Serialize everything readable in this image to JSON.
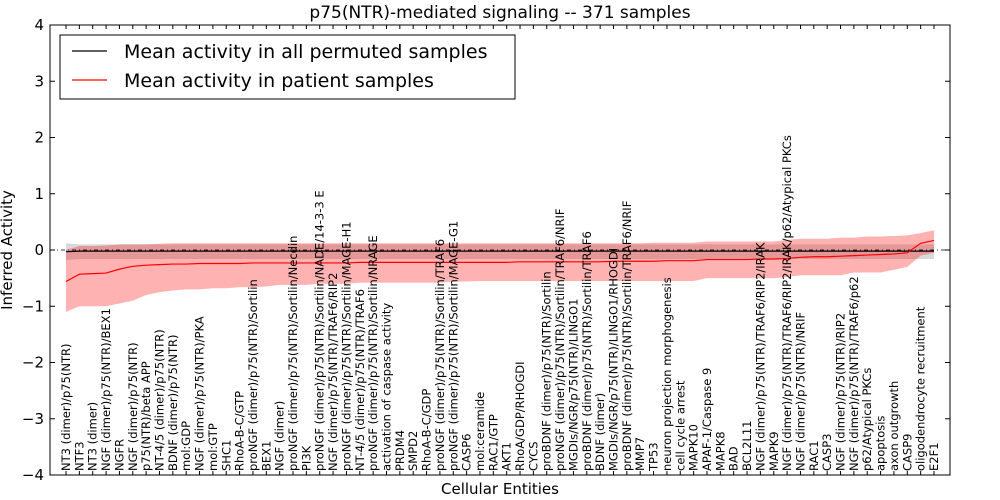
{
  "chart_data": {
    "type": "line",
    "title": "p75(NTR)-mediated signaling -- 371 samples",
    "xlabel": "Cellular Entities",
    "ylabel": "Inferred Activity",
    "ylim": [
      -4,
      4
    ],
    "yticks": [
      -4,
      -3,
      -2,
      -1,
      0,
      1,
      2,
      3,
      4
    ],
    "categories": [
      "NT3 (dimer)/p75(NTR)",
      "NTF3",
      "NT3 (dimer)",
      "NGF (dimer)/p75(NTR)/BEX1",
      "NGFR",
      "NGF (dimer)/p75(NTR)",
      "p75(NTR)/beta APP",
      "NT-4/5 (dimer)/p75(NTR)",
      "BDNF (dimer)/p75(NTR)",
      "mol:GDP",
      "NGF (dimer)/p75(NTR)/PKA",
      "mol:GTP",
      "SHC1",
      "RhoA-B-C/GTP",
      "proNGF (dimer)/p75(NTR)/Sortilin",
      "BEX1",
      "NGF (dimer)",
      "proNGF (dimer)/p75(NTR)/Sortilin/Necdin",
      "PI3K",
      "proNGF (dimer)/p75(NTR)/Sortilin/NADE/14-3-3 E",
      "NGF (dimer)/p75(NTR)/TRAF6/RIP2",
      "proNGF (dimer)/p75(NTR)/Sortilin/MAGE-H1",
      "NT-4/5 (dimer)/p75(NTR)/TRAF6",
      "proNGF (dimer)/p75(NTR)/Sortilin/NRAGE",
      "activation of caspase activity",
      "PRDM4",
      "SMPD2",
      "RhoA-B-C/GDP",
      "proNGF (dimer)/p75(NTR)/Sortilin/TRAF6",
      "proNGF (dimer)/p75(NTR)/Sortilin/MAGE-G1",
      "CASP6",
      "mol:ceramide",
      "RAC1/GTP",
      "AKT1",
      "RhoA/GDP/RHOGDI",
      "CYCS",
      "proBDNF (dimer)/p75(NTR)/Sortilin",
      "proNGF (dimer)/p75(NTR)/Sortilin/TRAF6/NRIF",
      "MGDIs/NGR/p75(NTR)/LINGO1",
      "proBDNF (dimer)/p75(NTR)/Sortilin/TRAF6",
      "BDNF (dimer)",
      "MGDIs/NGR/p75(NTR)/LINGO1/RHOGDI",
      "proBDNF (dimer)/p75(NTR)/Sortilin/TRAF6/NRIF",
      "MMP7",
      "TP53",
      "neuron projection morphogenesis",
      "cell cycle arrest",
      "MAPK10",
      "APAF-1/Caspase 9",
      "MAPK8",
      "BAD",
      "BCL2L11",
      "NGF (dimer)/p75(NTR)/TRAF6/RIP2/IRAK",
      "MAPK9",
      "NGF (dimer)/p75(NTR)/TRAF6/RIP2/IRAK/p62/Atypical PKCs",
      "NGF (dimer)/p75(NTR)/NRIF",
      "RAC1",
      "CASP3",
      "NGF (dimer)/p75(NTR)/RIP2",
      "NGF (dimer)/p75(NTR)/TRAF6/p62",
      "p62/Atypical PKCs",
      "apoptosis",
      "axon outgrowth",
      "CASP9",
      "oligodendrocyte recruitment",
      "E2F1"
    ],
    "series": [
      {
        "name": "Mean activity in all permuted samples",
        "color": "#000000",
        "values": [
          -0.03,
          -0.02,
          -0.02,
          -0.02,
          -0.02,
          -0.02,
          -0.02,
          -0.02,
          -0.02,
          -0.02,
          -0.02,
          -0.02,
          -0.02,
          -0.02,
          -0.02,
          -0.02,
          -0.02,
          -0.02,
          -0.02,
          -0.02,
          -0.02,
          -0.02,
          -0.02,
          -0.02,
          -0.02,
          -0.02,
          -0.02,
          -0.02,
          -0.02,
          -0.02,
          -0.02,
          -0.02,
          -0.02,
          -0.02,
          -0.02,
          -0.02,
          -0.02,
          -0.02,
          -0.02,
          -0.02,
          -0.02,
          -0.02,
          -0.02,
          -0.02,
          -0.02,
          -0.02,
          -0.02,
          -0.02,
          -0.02,
          -0.02,
          -0.02,
          -0.02,
          -0.02,
          -0.02,
          -0.02,
          -0.02,
          -0.02,
          -0.02,
          -0.02,
          -0.02,
          -0.02,
          -0.02,
          -0.02,
          -0.02,
          -0.02,
          -0.02
        ],
        "band_lower": [
          -0.18,
          -0.16,
          -0.16,
          -0.16,
          -0.16,
          -0.16,
          -0.16,
          -0.16,
          -0.16,
          -0.16,
          -0.16,
          -0.16,
          -0.16,
          -0.16,
          -0.16,
          -0.16,
          -0.16,
          -0.16,
          -0.16,
          -0.16,
          -0.16,
          -0.16,
          -0.16,
          -0.16,
          -0.16,
          -0.16,
          -0.16,
          -0.16,
          -0.16,
          -0.16,
          -0.16,
          -0.16,
          -0.16,
          -0.16,
          -0.16,
          -0.16,
          -0.16,
          -0.16,
          -0.16,
          -0.16,
          -0.16,
          -0.16,
          -0.16,
          -0.16,
          -0.16,
          -0.16,
          -0.16,
          -0.16,
          -0.16,
          -0.16,
          -0.16,
          -0.16,
          -0.16,
          -0.16,
          -0.16,
          -0.16,
          -0.16,
          -0.16,
          -0.16,
          -0.16,
          -0.16,
          -0.16,
          -0.16,
          -0.16,
          -0.16,
          -0.16
        ],
        "band_upper": [
          0.12,
          0.1,
          0.1,
          0.1,
          0.1,
          0.1,
          0.1,
          0.1,
          0.1,
          0.1,
          0.1,
          0.1,
          0.1,
          0.1,
          0.1,
          0.1,
          0.1,
          0.1,
          0.1,
          0.1,
          0.1,
          0.1,
          0.1,
          0.1,
          0.1,
          0.1,
          0.1,
          0.1,
          0.1,
          0.1,
          0.1,
          0.1,
          0.1,
          0.1,
          0.1,
          0.1,
          0.1,
          0.1,
          0.1,
          0.1,
          0.1,
          0.1,
          0.1,
          0.1,
          0.1,
          0.1,
          0.1,
          0.1,
          0.1,
          0.1,
          0.1,
          0.1,
          0.1,
          0.1,
          0.1,
          0.1,
          0.1,
          0.1,
          0.1,
          0.1,
          0.1,
          0.1,
          0.1,
          0.1,
          0.1,
          0.1
        ]
      },
      {
        "name": "Mean activity in patient samples",
        "color": "#ff0000",
        "values": [
          -0.56,
          -0.43,
          -0.42,
          -0.41,
          -0.34,
          -0.29,
          -0.27,
          -0.26,
          -0.25,
          -0.25,
          -0.24,
          -0.24,
          -0.24,
          -0.24,
          -0.23,
          -0.23,
          -0.23,
          -0.23,
          -0.23,
          -0.23,
          -0.23,
          -0.23,
          -0.22,
          -0.22,
          -0.22,
          -0.22,
          -0.22,
          -0.22,
          -0.22,
          -0.22,
          -0.22,
          -0.22,
          -0.22,
          -0.22,
          -0.21,
          -0.21,
          -0.21,
          -0.21,
          -0.21,
          -0.21,
          -0.21,
          -0.2,
          -0.2,
          -0.2,
          -0.2,
          -0.19,
          -0.19,
          -0.19,
          -0.17,
          -0.17,
          -0.17,
          -0.17,
          -0.16,
          -0.16,
          -0.15,
          -0.13,
          -0.12,
          -0.12,
          -0.11,
          -0.1,
          -0.09,
          -0.08,
          -0.07,
          -0.05,
          0.12,
          0.17
        ],
        "band_lower": [
          -1.1,
          -1.0,
          -1.0,
          -1.0,
          -0.95,
          -0.9,
          -0.8,
          -0.75,
          -0.72,
          -0.7,
          -0.7,
          -0.68,
          -0.68,
          -0.66,
          -0.66,
          -0.65,
          -0.62,
          -0.62,
          -0.62,
          -0.6,
          -0.6,
          -0.6,
          -0.58,
          -0.58,
          -0.58,
          -0.58,
          -0.58,
          -0.58,
          -0.58,
          -0.56,
          -0.56,
          -0.55,
          -0.55,
          -0.55,
          -0.55,
          -0.55,
          -0.55,
          -0.55,
          -0.55,
          -0.55,
          -0.55,
          -0.55,
          -0.55,
          -0.55,
          -0.55,
          -0.55,
          -0.55,
          -0.55,
          -0.5,
          -0.5,
          -0.5,
          -0.5,
          -0.5,
          -0.5,
          -0.48,
          -0.45,
          -0.45,
          -0.45,
          -0.45,
          -0.4,
          -0.4,
          -0.4,
          -0.35,
          -0.3,
          -0.1,
          -0.05
        ],
        "band_upper": [
          0.0,
          0.07,
          0.07,
          0.08,
          0.1,
          0.1,
          0.1,
          0.11,
          0.12,
          0.12,
          0.12,
          0.12,
          0.12,
          0.12,
          0.12,
          0.12,
          0.12,
          0.12,
          0.12,
          0.12,
          0.12,
          0.12,
          0.12,
          0.12,
          0.12,
          0.12,
          0.12,
          0.12,
          0.12,
          0.12,
          0.12,
          0.12,
          0.12,
          0.12,
          0.12,
          0.12,
          0.12,
          0.12,
          0.12,
          0.12,
          0.12,
          0.12,
          0.12,
          0.12,
          0.13,
          0.13,
          0.13,
          0.13,
          0.15,
          0.15,
          0.15,
          0.15,
          0.15,
          0.15,
          0.18,
          0.2,
          0.2,
          0.2,
          0.22,
          0.22,
          0.24,
          0.24,
          0.25,
          0.26,
          0.3,
          0.35
        ]
      }
    ],
    "reference_line": 0,
    "legend_position": "top-left"
  }
}
